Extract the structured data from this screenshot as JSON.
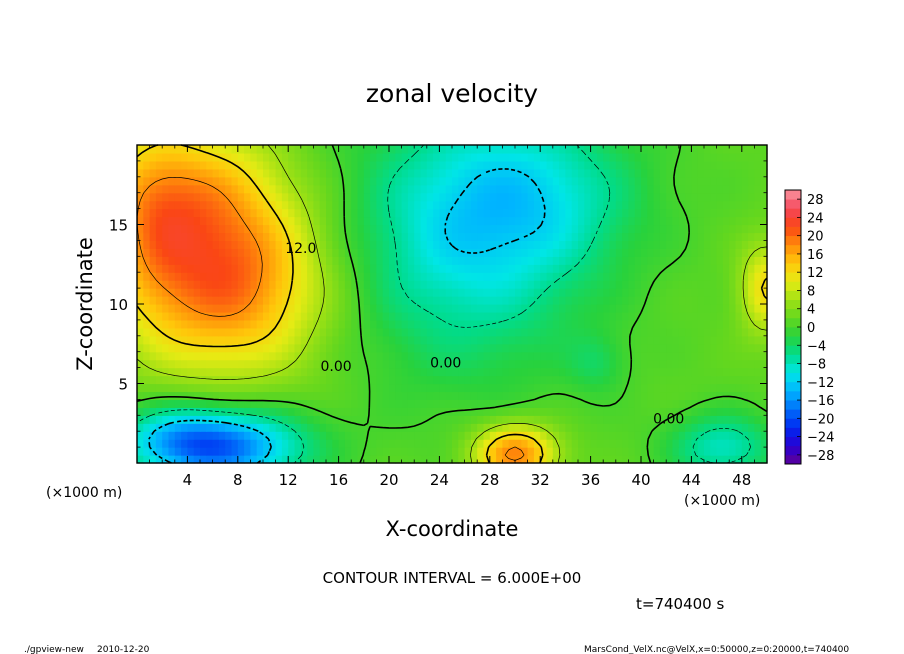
{
  "chart_data": {
    "type": "heatmap",
    "title": "zonal velocity",
    "xlabel": "X-coordinate",
    "ylabel": "Z-coordinate",
    "x_unit": "(×1000 m)",
    "y_unit": "(×1000 m)",
    "xlim": [
      0,
      50
    ],
    "ylim": [
      0,
      20
    ],
    "x_ticks": [
      "4",
      "8",
      "12",
      "16",
      "20",
      "24",
      "28",
      "32",
      "36",
      "40",
      "44",
      "48"
    ],
    "x_tick_values": [
      4,
      8,
      12,
      16,
      20,
      24,
      28,
      32,
      36,
      40,
      44,
      48
    ],
    "y_ticks": [
      "5",
      "10",
      "15"
    ],
    "y_tick_values": [
      5,
      10,
      15
    ],
    "colorbar": {
      "levels": [
        -30,
        -28,
        -26,
        -24,
        -22,
        -20,
        -18,
        -16,
        -14,
        -12,
        -10,
        -8,
        -6,
        -4,
        -2,
        0,
        2,
        4,
        6,
        8,
        10,
        12,
        14,
        16,
        18,
        20,
        22,
        24,
        26,
        28,
        30
      ],
      "tick_labels": [
        "28",
        "24",
        "20",
        "16",
        "12",
        "8",
        "4",
        "0",
        "−4",
        "−8",
        "−12",
        "−16",
        "−20",
        "−24",
        "−28"
      ],
      "tick_values": [
        28,
        24,
        20,
        16,
        12,
        8,
        4,
        0,
        -4,
        -8,
        -12,
        -16,
        -20,
        -24,
        -28
      ]
    },
    "contour_labels": [
      {
        "text": "12.0",
        "x": 13.0,
        "z": 13.2
      },
      {
        "text": "0.00",
        "x": 15.8,
        "z": 5.8
      },
      {
        "text": "0.00",
        "x": 24.5,
        "z": 6.0
      },
      {
        "text": "0.00",
        "x": 42.2,
        "z": 2.5
      }
    ],
    "features": [
      {
        "kind": "max",
        "x": 7.0,
        "z": 11.5,
        "value": 19,
        "sx": 5.5,
        "sz": 4.0
      },
      {
        "kind": "max",
        "x": 4.0,
        "z": 17.5,
        "value": 10,
        "sx": 5.0,
        "sz": 3.0
      },
      {
        "kind": "max",
        "x": 30.0,
        "z": 0.6,
        "value": 18,
        "sx": 2.3,
        "sz": 1.3
      },
      {
        "kind": "max",
        "x": 50.0,
        "z": 11.0,
        "value": 11,
        "sx": 1.5,
        "sz": 2.0
      },
      {
        "kind": "max",
        "x": 1.0,
        "z": 15.0,
        "value": 6,
        "sx": 2.5,
        "sz": 4.0
      },
      {
        "kind": "min",
        "x": 26.0,
        "z": 14.0,
        "value": -11,
        "sx": 7.0,
        "sz": 6.0
      },
      {
        "kind": "min",
        "x": 32.0,
        "z": 17.0,
        "value": -7,
        "sx": 6.0,
        "sz": 3.5
      },
      {
        "kind": "min",
        "x": 7.5,
        "z": 1.0,
        "value": -17,
        "sx": 4.5,
        "sz": 1.7
      },
      {
        "kind": "min",
        "x": 3.0,
        "z": 1.5,
        "value": -10,
        "sx": 3.5,
        "sz": 1.5
      },
      {
        "kind": "min",
        "x": 46.5,
        "z": 1.0,
        "value": -10,
        "sx": 3.0,
        "sz": 1.5
      },
      {
        "kind": "min",
        "x": 36.5,
        "z": 6.3,
        "value": -4,
        "sx": 1.6,
        "sz": 1.3
      }
    ],
    "contour_interval": "CONTOUR INTERVAL = 6.000E+00"
  },
  "footer": {
    "time": "t=740400 s",
    "program": "./gpview-new",
    "date": "2010-12-20",
    "source": "MarsCond_VelX.nc@VelX,x=0:50000,z=0:20000,t=740400"
  }
}
